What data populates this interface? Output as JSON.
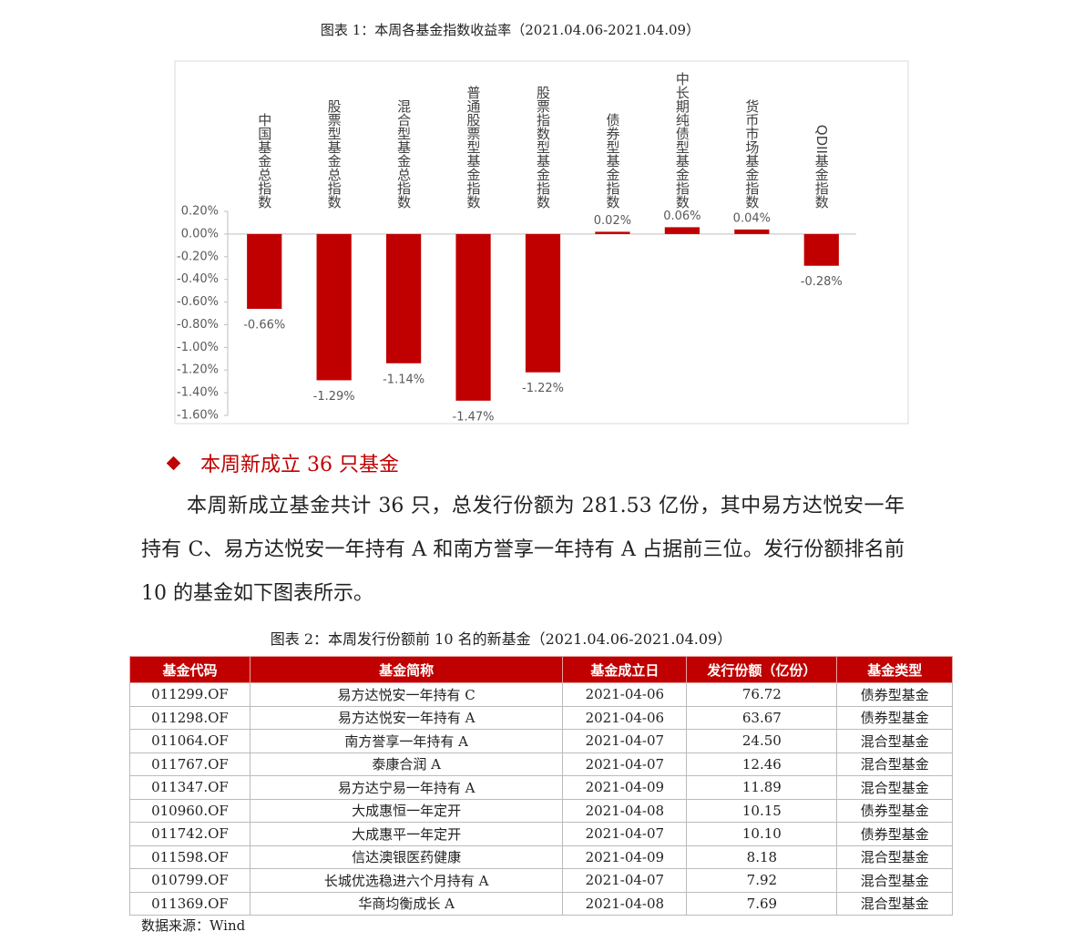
{
  "chart_data": {
    "type": "bar",
    "title": "图表 1：本周各基金指数收益率（2021.04.06-2021.04.09）",
    "categories": [
      "中国基金总指数",
      "股票型基金总指数",
      "混合型基金总指数",
      "普通股票型基金指数",
      "股票指数型基金指数",
      "债券型基金指数",
      "中长期纯债型基金指数",
      "货币市场基金指数",
      "QDII基金指数"
    ],
    "values": [
      -0.66,
      -1.29,
      -1.14,
      -1.47,
      -1.22,
      0.02,
      0.06,
      0.04,
      -0.28
    ],
    "value_labels": [
      "-0.66%",
      "-1.29%",
      "-1.14%",
      "-1.47%",
      "-1.22%",
      "0.02%",
      "0.06%",
      "0.04%",
      "-0.28%"
    ],
    "color": "#c00000",
    "ylim": [
      -1.6,
      0.2
    ],
    "yticks": [
      {
        "value": 0.2,
        "label": "0.20%"
      },
      {
        "value": 0,
        "label": "0.00%"
      },
      {
        "value": -0.2,
        "label": "-0.20%"
      },
      {
        "value": -0.4,
        "label": "-0.40%"
      },
      {
        "value": -0.6,
        "label": "-0.60%"
      },
      {
        "value": -0.8,
        "label": "-0.80%"
      },
      {
        "value": -1.0,
        "label": "-1.00%"
      },
      {
        "value": -1.2,
        "label": "-1.20%"
      },
      {
        "value": -1.4,
        "label": "-1.40%"
      },
      {
        "value": -1.6,
        "label": "-1.60%"
      }
    ]
  },
  "section": {
    "heading": "本周新成立 36 只基金",
    "paragraph": "本周新成立基金共计 36 只，总发行份额为 281.53 亿份，其中易方达悦安一年持有 C、易方达悦安一年持有 A 和南方誉享一年持有 A 占据前三位。发行份额排名前 10 的基金如下图表所示。"
  },
  "table": {
    "title": "图表 2：本周发行份额前 10 名的新基金（2021.04.06-2021.04.09）",
    "columns": [
      "基金代码",
      "基金简称",
      "基金成立日",
      "发行份额（亿份）",
      "基金类型"
    ],
    "rows": [
      [
        "011299.OF",
        "易方达悦安一年持有 C",
        "2021-04-06",
        "76.72",
        "债券型基金"
      ],
      [
        "011298.OF",
        "易方达悦安一年持有 A",
        "2021-04-06",
        "63.67",
        "债券型基金"
      ],
      [
        "011064.OF",
        "南方誉享一年持有 A",
        "2021-04-07",
        "24.50",
        "混合型基金"
      ],
      [
        "011767.OF",
        "泰康合润 A",
        "2021-04-07",
        "12.46",
        "混合型基金"
      ],
      [
        "011347.OF",
        "易方达宁易一年持有 A",
        "2021-04-09",
        "11.89",
        "混合型基金"
      ],
      [
        "010960.OF",
        "大成惠恒一年定开",
        "2021-04-08",
        "10.15",
        "债券型基金"
      ],
      [
        "011742.OF",
        "大成惠平一年定开",
        "2021-04-07",
        "10.10",
        "债券型基金"
      ],
      [
        "011598.OF",
        "信达澳银医药健康",
        "2021-04-09",
        "8.18",
        "混合型基金"
      ],
      [
        "010799.OF",
        "长城优选稳进六个月持有 A",
        "2021-04-07",
        "7.92",
        "混合型基金"
      ],
      [
        "011369.OF",
        "华商均衡成长 A",
        "2021-04-08",
        "7.69",
        "混合型基金"
      ]
    ],
    "source": "数据来源：Wind"
  }
}
